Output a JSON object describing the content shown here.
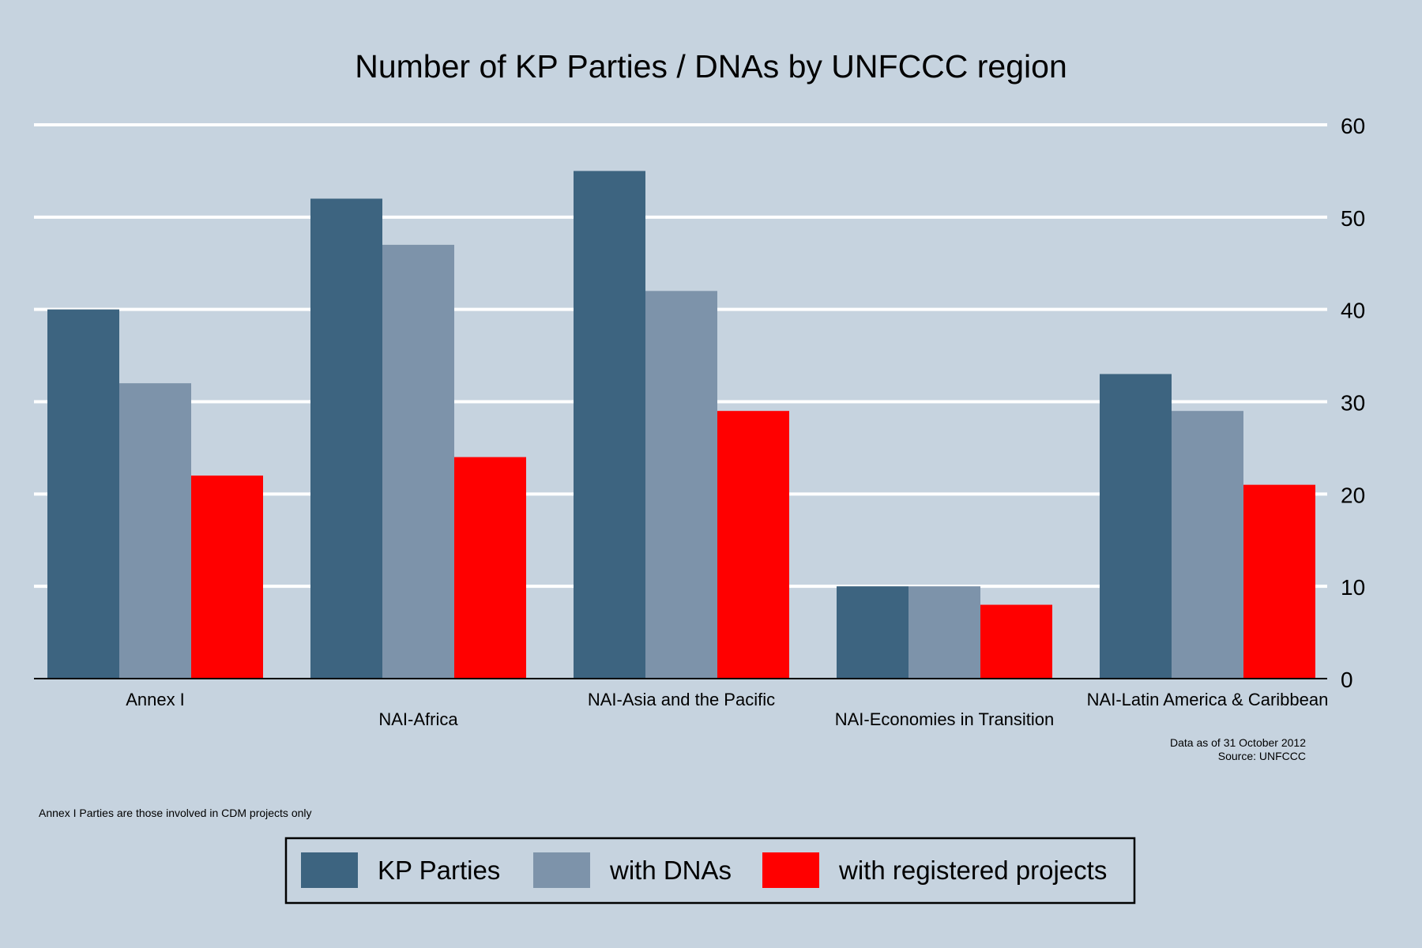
{
  "chart_data": {
    "type": "bar",
    "title": "Number of KP Parties / DNAs by UNFCCC region",
    "categories": [
      "Annex I",
      "NAI-Africa",
      "NAI-Asia and the Pacific",
      "NAI-Economies in Transition",
      "NAI-Latin America & Caribbean"
    ],
    "series": [
      {
        "name": "KP Parties",
        "color": "#3d6480",
        "values": [
          40,
          52,
          55,
          10,
          33
        ]
      },
      {
        "name": "with DNAs",
        "color": "#7d93aa",
        "values": [
          32,
          47,
          42,
          10,
          29
        ]
      },
      {
        "name": "with registered projects",
        "color": "#ff0000",
        "values": [
          22,
          24,
          29,
          8,
          21
        ]
      }
    ],
    "ylim": [
      0,
      60
    ],
    "yticks": [
      0,
      10,
      20,
      30,
      40,
      50,
      60
    ],
    "y_axis_side": "right",
    "grid": true,
    "legend_position": "bottom",
    "notes": {
      "data_date": "Data as of 31 October 2012",
      "source": "Source: UNFCCC",
      "footnote": "Annex I Parties are those involved in CDM projects only"
    }
  },
  "colors": {
    "background": "#c6d3df",
    "gridline": "#ffffff",
    "axis": "#000000"
  }
}
